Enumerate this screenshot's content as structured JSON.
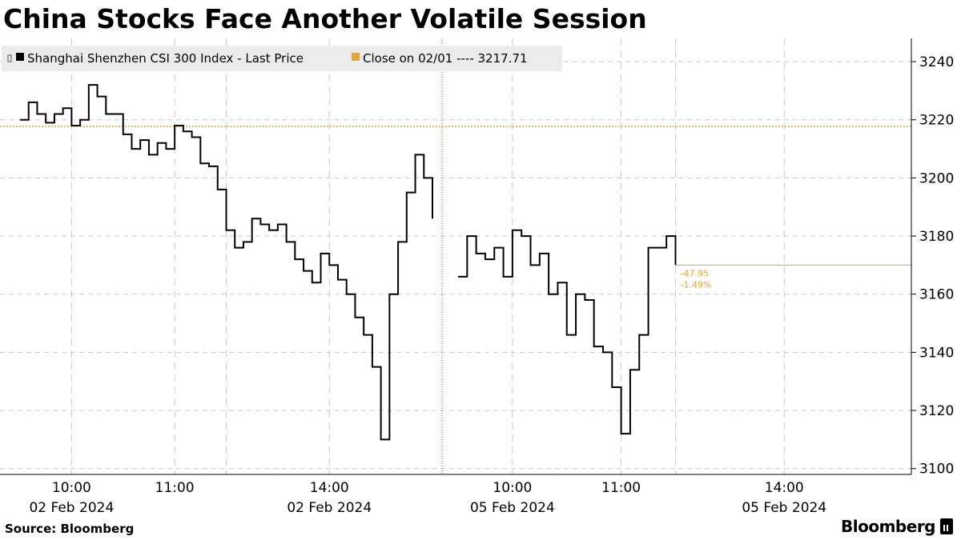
{
  "title": "China Stocks Face Another Volatile Session",
  "footer": {
    "source": "Source: Bloomberg",
    "brand": "Bloomberg"
  },
  "colors": {
    "line": "#000000",
    "reference": "#e8a33a",
    "grid": "#c8c8c8",
    "legend_bg": "#ececec"
  },
  "chart_data": {
    "type": "line",
    "title": "China Stocks Face Another Volatile Session",
    "ylim": [
      3098,
      3248
    ],
    "yticks": [
      3100,
      3120,
      3140,
      3160,
      3180,
      3200,
      3220,
      3240
    ],
    "xlabels": [
      {
        "time": "10:00",
        "date": "02 Feb 2024"
      },
      {
        "time": "11:00",
        "date": ""
      },
      {
        "time": "14:00",
        "date": "02 Feb 2024"
      },
      {
        "time": "10:00",
        "date": "05 Feb 2024"
      },
      {
        "time": "11:00",
        "date": ""
      },
      {
        "time": "14:00",
        "date": "05 Feb 2024"
      }
    ],
    "legend": [
      {
        "name": "Shanghai Shenzhen CSI 300 Index - Last Price",
        "color": "#000000"
      },
      {
        "name": "Close on 02/01 ---- 3217.71",
        "color": "#e8a33a"
      }
    ],
    "reference_line": {
      "label": "Close on 02/01",
      "value": 3217.71
    },
    "annotation": {
      "change": "-47.95",
      "pct": "-1.49%"
    },
    "series": [
      {
        "name": "Shanghai Shenzhen CSI 300 Index - Last Price",
        "sessions": [
          {
            "date": "02 Feb 2024",
            "x": [
              "09:30",
              "09:35",
              "09:40",
              "09:45",
              "09:50",
              "09:55",
              "10:00",
              "10:05",
              "10:10",
              "10:15",
              "10:20",
              "10:25",
              "10:30",
              "10:35",
              "10:40",
              "10:45",
              "10:50",
              "10:55",
              "11:00",
              "11:05",
              "11:10",
              "11:15",
              "11:20",
              "11:25",
              "11:30",
              "13:00",
              "13:05",
              "13:10",
              "13:15",
              "13:20",
              "13:25",
              "13:30",
              "13:35",
              "13:40",
              "13:45",
              "13:50",
              "13:55",
              "14:00",
              "14:05",
              "14:10",
              "14:15",
              "14:20",
              "14:25",
              "14:30",
              "14:35",
              "14:40",
              "14:45",
              "14:50",
              "14:55",
              "15:00"
            ],
            "y": [
              3220,
              3226,
              3222,
              3219,
              3222,
              3224,
              3218,
              3220,
              3232,
              3228,
              3222,
              3222,
              3215,
              3210,
              3213,
              3208,
              3212,
              3210,
              3218,
              3216,
              3214,
              3205,
              3204,
              3196,
              3188,
              3182,
              3176,
              3178,
              3186,
              3184,
              3182,
              3184,
              3178,
              3172,
              3168,
              3164,
              3174,
              3170,
              3165,
              3160,
              3152,
              3146,
              3135,
              3110,
              3160,
              3178,
              3195,
              3208,
              3200,
              3186
            ]
          },
          {
            "date": "05 Feb 2024",
            "x": [
              "09:30",
              "09:35",
              "09:40",
              "09:45",
              "09:50",
              "09:55",
              "10:00",
              "10:05",
              "10:10",
              "10:15",
              "10:20",
              "10:25",
              "10:30",
              "10:35",
              "10:40",
              "10:45",
              "10:50",
              "10:55",
              "11:00",
              "11:05",
              "11:10",
              "11:15",
              "11:20",
              "11:25",
              "11:30"
            ],
            "y": [
              3166,
              3180,
              3174,
              3172,
              3176,
              3166,
              3182,
              3180,
              3170,
              3174,
              3160,
              3164,
              3146,
              3160,
              3158,
              3142,
              3140,
              3128,
              3112,
              3134,
              3146,
              3176,
              3176,
              3180,
              3170
            ]
          }
        ]
      }
    ]
  }
}
